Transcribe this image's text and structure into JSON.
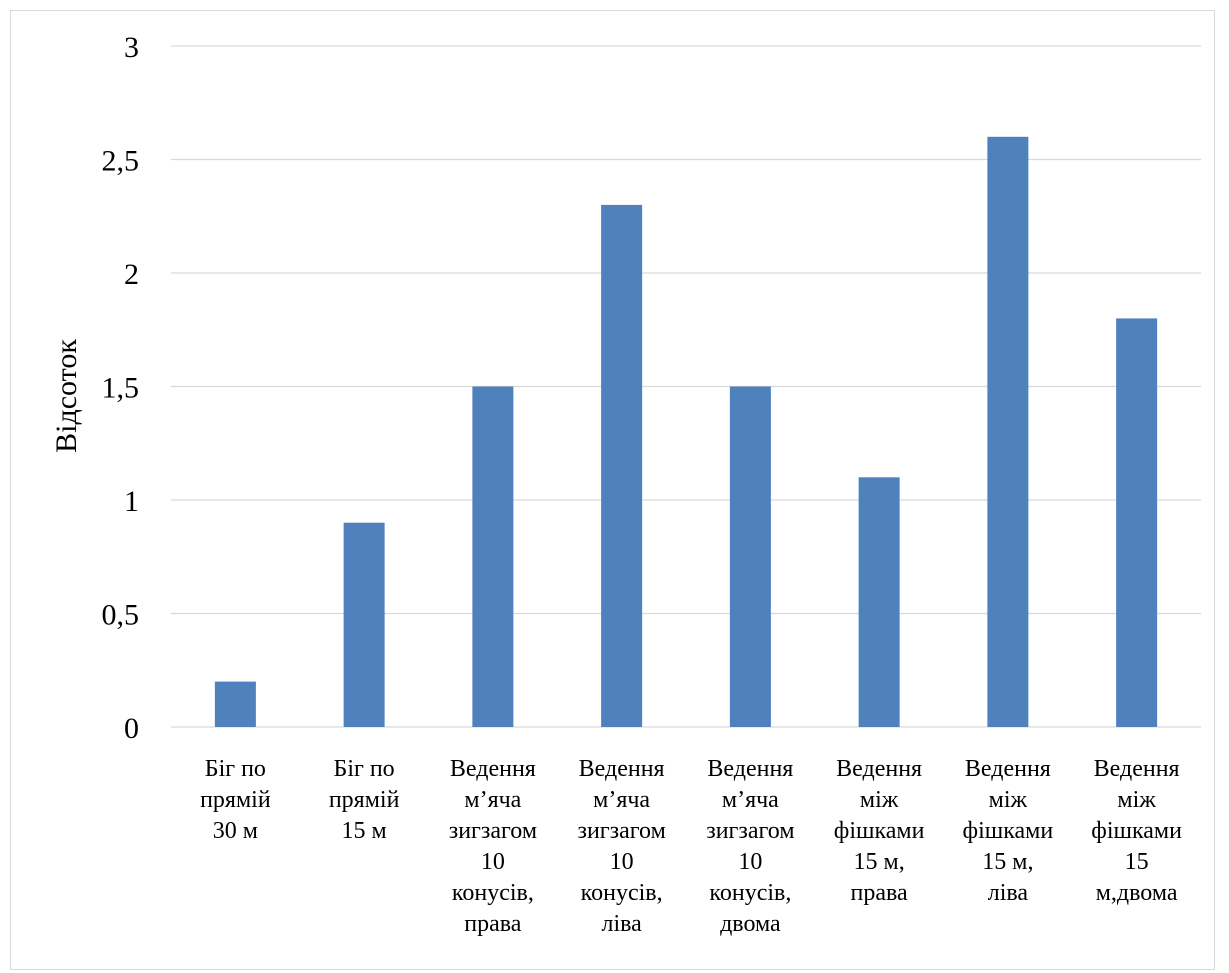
{
  "chart_data": {
    "type": "bar",
    "ylabel": "Відсоток",
    "xlabel": "",
    "ylim": [
      0,
      3
    ],
    "yticks": [
      "0",
      "0,5",
      "1",
      "1,5",
      "2",
      "2,5",
      "3"
    ],
    "grid": true,
    "legend": "none",
    "bar_color": "#4f81bd",
    "categories": [
      [
        "Біг по",
        "прямій",
        "30 м"
      ],
      [
        "Біг по",
        "прямій",
        "15 м"
      ],
      [
        "Ведення",
        "м’яча",
        "зигзагом",
        "10",
        "конусів,",
        "права"
      ],
      [
        "Ведення",
        "м’яча",
        "зигзагом",
        "10",
        "конусів,",
        "ліва"
      ],
      [
        "Ведення",
        "м’яча",
        "зигзагом",
        "10",
        "конусів,",
        "двома"
      ],
      [
        "Ведення",
        "між",
        "фішками",
        "15 м,",
        "права"
      ],
      [
        "Ведення",
        "між",
        "фішками",
        "15 м,",
        "ліва"
      ],
      [
        "Ведення",
        "між",
        "фішками",
        "15",
        "м,двома"
      ]
    ],
    "values": [
      0.2,
      0.9,
      1.5,
      2.3,
      1.5,
      1.1,
      2.6,
      1.8
    ]
  }
}
